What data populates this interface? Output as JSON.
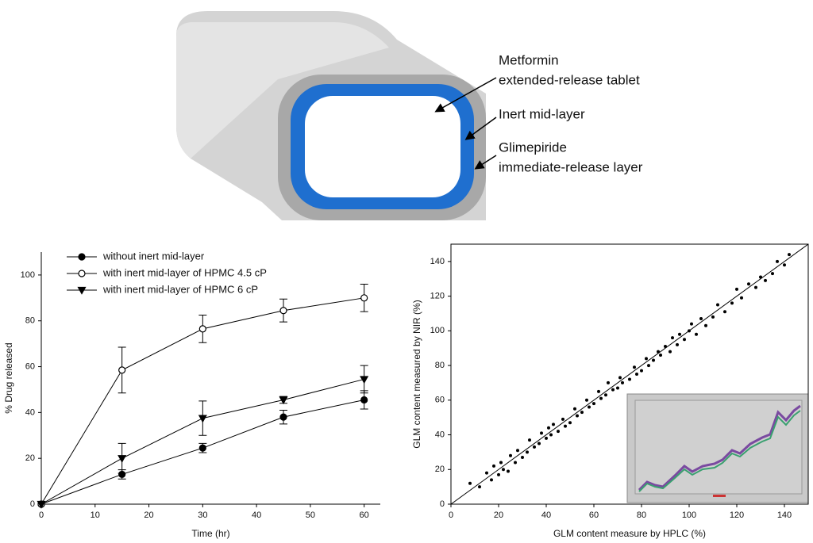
{
  "diagram": {
    "labels": [
      [
        "Metformin",
        "extended-release tablet"
      ],
      [
        "Inert mid-layer"
      ],
      [
        "Glimepiride",
        "immediate-release layer"
      ]
    ]
  },
  "chart_data": [
    {
      "type": "line",
      "x_label": "Time (hr)",
      "y_label": "% Drug released",
      "x": [
        0,
        15,
        30,
        45,
        60
      ],
      "xlim": [
        0,
        63
      ],
      "xticks": [
        0,
        10,
        20,
        30,
        40,
        50,
        60
      ],
      "ylim": [
        0,
        110
      ],
      "yticks": [
        0,
        20,
        40,
        60,
        80,
        100
      ],
      "legend": "upper left",
      "series": [
        {
          "name": "without inert mid-layer",
          "color": "#000000",
          "marker": "circle-filled",
          "values": [
            0,
            13,
            24.5,
            38,
            45.5
          ],
          "errors": [
            0,
            2,
            2,
            3,
            4
          ]
        },
        {
          "name": "with inert mid-layer of HPMC 4.5 cP",
          "color": "#000000",
          "marker": "circle-open",
          "values": [
            0,
            58.5,
            76.5,
            84.5,
            90
          ],
          "errors": [
            0,
            10,
            6,
            5,
            6
          ]
        },
        {
          "name": "with inert mid-layer of HPMC 6 cP",
          "color": "#000000",
          "marker": "triangle-down",
          "values": [
            0,
            20,
            37.5,
            45.5,
            54.5
          ],
          "errors": [
            0,
            6.5,
            7.5,
            1.5,
            6
          ]
        }
      ]
    },
    {
      "type": "scatter",
      "x_label": "GLM content measure by HPLC (%)",
      "y_label": "GLM content measured by NIR (%)",
      "xlim": [
        0,
        150
      ],
      "xticks": [
        0,
        20,
        40,
        60,
        80,
        100,
        120,
        140
      ],
      "ylim": [
        0,
        150
      ],
      "yticks": [
        0,
        20,
        40,
        60,
        80,
        100,
        120,
        140
      ],
      "identity_line": true,
      "color": "#000000",
      "x": [
        8,
        12,
        15,
        17,
        18,
        20,
        21,
        22,
        24,
        25,
        27,
        28,
        30,
        32,
        33,
        35,
        37,
        38,
        40,
        41,
        42,
        43,
        45,
        47,
        48,
        50,
        52,
        53,
        55,
        57,
        58,
        60,
        62,
        63,
        65,
        66,
        68,
        70,
        71,
        72,
        75,
        77,
        78,
        80,
        82,
        83,
        85,
        87,
        88,
        90,
        92,
        93,
        95,
        96,
        98,
        100,
        101,
        103,
        105,
        107,
        110,
        112,
        115,
        118,
        120,
        122,
        125,
        128,
        130,
        132,
        135,
        137,
        140,
        142
      ],
      "values": [
        12,
        10,
        18,
        14,
        22,
        17,
        24,
        20,
        19,
        28,
        24,
        31,
        27,
        30,
        37,
        33,
        35,
        41,
        38,
        44,
        40,
        46,
        42,
        49,
        45,
        47,
        55,
        51,
        53,
        60,
        56,
        58,
        65,
        61,
        63,
        70,
        66,
        67,
        73,
        70,
        72,
        79,
        75,
        77,
        84,
        80,
        83,
        88,
        86,
        91,
        88,
        96,
        92,
        98,
        95,
        100,
        104,
        98,
        107,
        103,
        108,
        115,
        111,
        116,
        124,
        119,
        127,
        125,
        131,
        129,
        133,
        140,
        138,
        144
      ]
    }
  ]
}
